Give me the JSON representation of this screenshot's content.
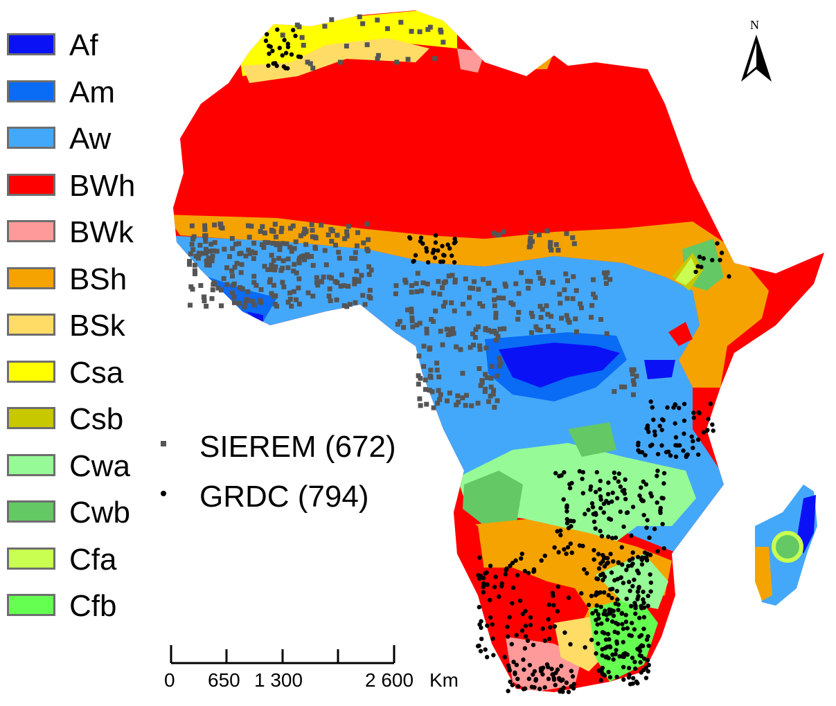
{
  "legend": {
    "classes": [
      {
        "code": "Af",
        "color": "#0a12f5"
      },
      {
        "code": "Am",
        "color": "#0a6bf5"
      },
      {
        "code": "Aw",
        "color": "#44a8fa"
      },
      {
        "code": "BWh",
        "color": "#ff0000"
      },
      {
        "code": "BWk",
        "color": "#ff9a9a"
      },
      {
        "code": "BSh",
        "color": "#f5a300"
      },
      {
        "code": "BSk",
        "color": "#ffdc66"
      },
      {
        "code": "Csa",
        "color": "#ffff00"
      },
      {
        "code": "Csb",
        "color": "#c8c800"
      },
      {
        "code": "Cwa",
        "color": "#96fa96"
      },
      {
        "code": "Cwb",
        "color": "#64c864"
      },
      {
        "code": "Cfa",
        "color": "#c8ff50"
      },
      {
        "code": "Cfb",
        "color": "#64ff50"
      }
    ]
  },
  "stations": {
    "sierem": {
      "label": "SIEREM (672)",
      "color": "#555555",
      "marker": "square"
    },
    "grdc": {
      "label": "GRDC (794)",
      "color": "#000000",
      "marker": "dot"
    }
  },
  "scale_bar": {
    "labels": [
      "0",
      "650",
      "1 300",
      "2 600"
    ],
    "unit": "Km"
  },
  "north_arrow": {
    "label": "N",
    "icon": "north-arrow-icon"
  }
}
